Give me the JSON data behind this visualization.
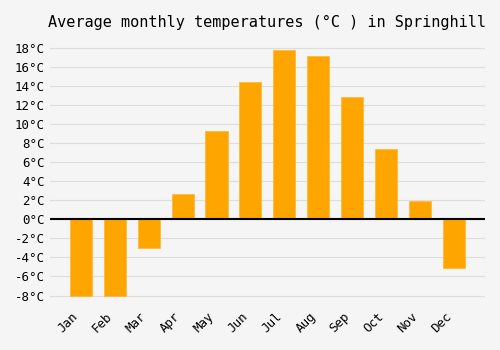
{
  "title": "Average monthly temperatures (°C ) in Springhill",
  "months": [
    "Jan",
    "Feb",
    "Mar",
    "Apr",
    "May",
    "Jun",
    "Jul",
    "Aug",
    "Sep",
    "Oct",
    "Nov",
    "Dec"
  ],
  "values": [
    -8,
    -8,
    -3,
    2.7,
    9.3,
    14.4,
    17.8,
    17.1,
    12.8,
    7.4,
    1.9,
    -5.1
  ],
  "bar_color": "#FFA500",
  "bar_color_light": "#FFB733",
  "ylim": [
    -9,
    19
  ],
  "yticks": [
    -8,
    -6,
    -4,
    -2,
    0,
    2,
    4,
    6,
    8,
    10,
    12,
    14,
    16,
    18
  ],
  "background_color": "#f5f5f5",
  "grid_color": "#dddddd",
  "title_fontsize": 11,
  "tick_fontsize": 9
}
